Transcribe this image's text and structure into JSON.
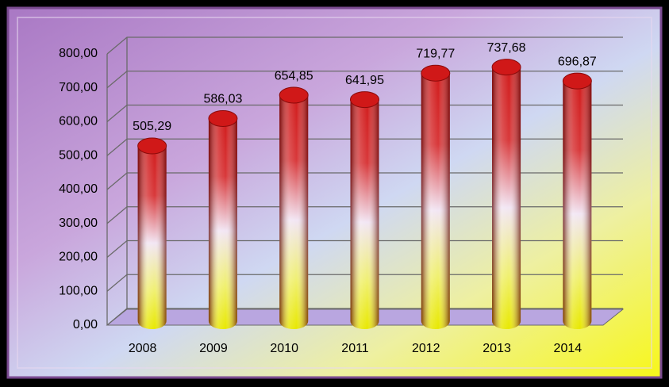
{
  "chart_data": {
    "type": "bar",
    "categories": [
      "2008",
      "2009",
      "2010",
      "2011",
      "2012",
      "2013",
      "2014"
    ],
    "values": [
      505.29,
      586.03,
      654.85,
      641.95,
      719.77,
      737.68,
      696.87
    ],
    "value_labels": [
      "505,29",
      "586,03",
      "654,85",
      "641,95",
      "719,77",
      "737,68",
      "696,87"
    ],
    "color": "#d01818",
    "ylim": [
      0,
      800
    ],
    "yticks": [
      {
        "value": 0,
        "label": "0,00"
      },
      {
        "value": 100,
        "label": "100,00"
      },
      {
        "value": 200,
        "label": "200,00"
      },
      {
        "value": 300,
        "label": "300,00"
      },
      {
        "value": 400,
        "label": "400,00"
      },
      {
        "value": 500,
        "label": "500,00"
      },
      {
        "value": 600,
        "label": "600,00"
      },
      {
        "value": 700,
        "label": "700,00"
      },
      {
        "value": 800,
        "label": "800,00"
      }
    ],
    "grid": true
  }
}
